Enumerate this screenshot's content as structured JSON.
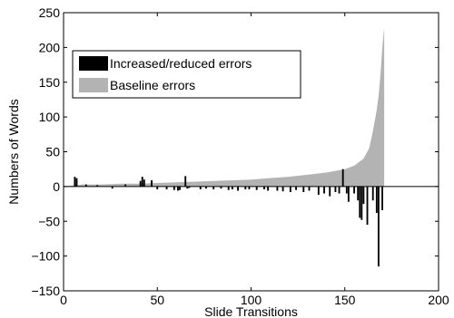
{
  "chart_data": {
    "type": "bar",
    "xlabel": "Slide Transitions",
    "ylabel": "Numbers of Words",
    "xlim": [
      0,
      200
    ],
    "ylim": [
      -150,
      250
    ],
    "xticks": [
      0,
      50,
      100,
      150,
      200
    ],
    "yticks": [
      -150,
      -100,
      -50,
      0,
      50,
      100,
      150,
      200,
      250
    ],
    "xtick_labels": [
      "0",
      "50",
      "100",
      "150",
      "200"
    ],
    "ytick_labels": [
      "−150",
      "−100",
      "−50",
      "0",
      "50",
      "100",
      "150",
      "200",
      "250"
    ],
    "grid": false,
    "legend_position": "top-left",
    "series": [
      {
        "name": "Increased/reduced errors",
        "color": "#000000",
        "x": [
          6,
          7,
          12,
          18,
          26,
          33,
          41,
          42,
          43,
          47,
          50,
          55,
          59,
          61,
          62,
          65,
          66,
          67,
          73,
          76,
          80,
          84,
          88,
          90,
          93,
          97,
          99,
          103,
          107,
          109,
          114,
          117,
          121,
          124,
          128,
          131,
          136,
          139,
          142,
          145,
          147,
          149,
          151,
          152,
          155,
          157,
          158,
          159,
          160,
          162,
          165,
          167,
          168,
          170
        ],
        "values": [
          14,
          12,
          3,
          2,
          -3,
          3,
          8,
          14,
          10,
          9,
          -4,
          -4,
          -5,
          -6,
          -5,
          15,
          -3,
          -2,
          -4,
          -3,
          -4,
          -3,
          -5,
          -4,
          -6,
          -4,
          -4,
          -5,
          -4,
          -6,
          -6,
          -7,
          -8,
          -5,
          -8,
          -6,
          -12,
          -10,
          -14,
          -8,
          -10,
          25,
          -10,
          -22,
          -10,
          -20,
          -45,
          -48,
          -25,
          -55,
          -20,
          -38,
          -115,
          -34
        ]
      },
      {
        "name": "Baseline errors",
        "color": "#b3b3b3",
        "x": [
          10,
          20,
          30,
          40,
          50,
          60,
          70,
          80,
          90,
          100,
          110,
          120,
          130,
          140,
          150,
          155,
          160,
          163,
          165,
          167,
          168,
          169,
          170,
          171
        ],
        "values": [
          3,
          3,
          4,
          4,
          5,
          6,
          7,
          8,
          9,
          10,
          12,
          14,
          17,
          20,
          25,
          30,
          40,
          55,
          80,
          110,
          130,
          160,
          200,
          228
        ]
      }
    ]
  }
}
